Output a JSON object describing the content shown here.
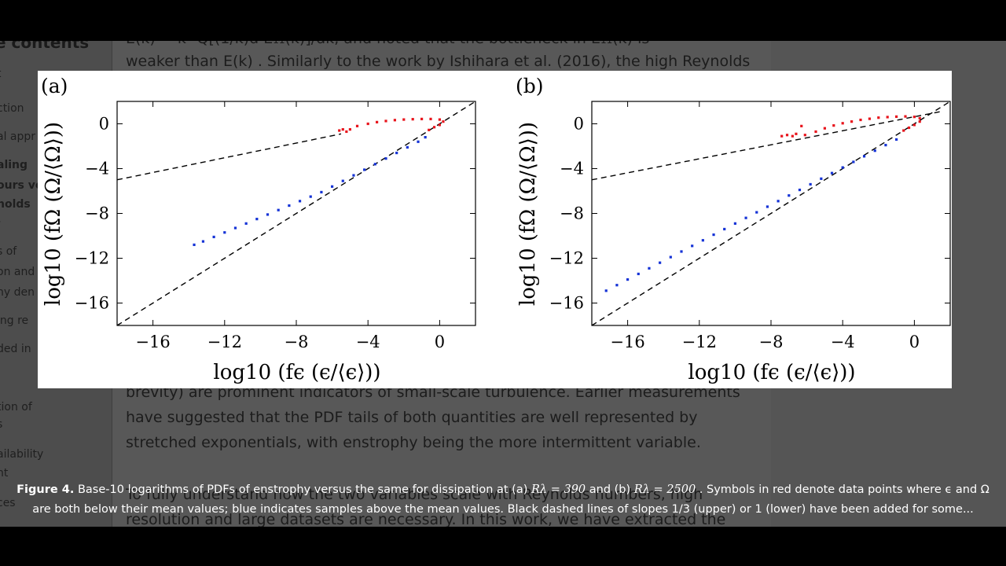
{
  "toc": {
    "title": "e contents",
    "items": [
      {
        "label": "t",
        "bold": false
      },
      {
        "label": "ction",
        "bold": false
      },
      {
        "label": "al appr",
        "bold": false
      },
      {
        "label": "aling",
        "bold": true
      },
      {
        "label": "ours ve",
        "bold": true
      },
      {
        "label": "nolds",
        "bold": true
      },
      {
        "label": "-",
        "bold": false
      },
      {
        "label": "s of",
        "bold": false
      },
      {
        "label": "on and",
        "bold": false
      },
      {
        "label": "hy den",
        "bold": false
      },
      {
        "label": "ing re",
        "bold": false
      },
      {
        "label": "ded in",
        "bold": false
      },
      {
        "label": "tion of",
        "bold": false
      },
      {
        "label": "s",
        "bold": false
      },
      {
        "label": "ailability",
        "bold": false
      },
      {
        "label": "nt",
        "bold": false
      },
      {
        "label": "ces",
        "bold": false
      }
    ]
  },
  "article": {
    "line_top_cut": "E(k) = k² Q[(1/k)d E₁₁(k)]/dk, and noted that the bottleneck in E₁₁(k) is",
    "line1": "weaker than E(k) . Similarly to the work by Ishihara et al. (2016), the high Reynolds",
    "line2": "brevity) are prominent indicators of small-scale turbulence. Earlier measurements",
    "line3": "have suggested that the PDF tails of both quantities are well represented by",
    "line4": "stretched exponentials, with enstrophy being the more intermittent variable.",
    "line5": "To fully understand how the two variables scale with Reynolds numbers, high",
    "line6": "resolution and large datasets are necessary. In this work, we have extracted the"
  },
  "caption": {
    "label": "Figure 4.",
    "line1_a": "Base-10 logarithms of PDFs of enstrophy versus the same for dissipation at (a)",
    "ra": "Rλ = 390",
    "and": "and (b)",
    "rb": "Rλ = 2500",
    "line1_b": ". Symbols in red denote data points where ϵ and Ω",
    "line2": "are both below their mean values; blue indicates samples above the mean values. Black dashed lines of slopes 1/3 (upper) or 1 (lower) have been added for some..."
  },
  "colors": {
    "below_mean": "#e8141c",
    "above_mean": "#1533d6",
    "reference": "#000000"
  },
  "chart_data": [
    {
      "type": "scatter",
      "panel": "(a)",
      "xlabel": "log10 (fϵ (ϵ/⟨ϵ⟩))",
      "ylabel": "log10 (fΩ (Ω/⟨Ω⟩))",
      "xlim": [
        -18,
        2
      ],
      "ylim": [
        -18,
        2
      ],
      "xticks": [
        -16,
        -12,
        -8,
        -4,
        0
      ],
      "yticks": [
        0,
        -4,
        -8,
        -12,
        -16
      ],
      "series": [
        {
          "color": "#e8141c",
          "kind": "below-mean",
          "points": [
            [
              -5.6,
              -0.6
            ],
            [
              -5.4,
              -0.5
            ],
            [
              -5.2,
              -0.7
            ],
            [
              -5.0,
              -0.5
            ],
            [
              -4.6,
              -0.2
            ],
            [
              -4.0,
              0.0
            ],
            [
              -3.5,
              0.15
            ],
            [
              -3.0,
              0.25
            ],
            [
              -2.5,
              0.33
            ],
            [
              -2.0,
              0.38
            ],
            [
              -1.5,
              0.41
            ],
            [
              -1.0,
              0.43
            ],
            [
              -0.5,
              0.43
            ],
            [
              0.0,
              0.38
            ],
            [
              0.2,
              0.2
            ],
            [
              0.0,
              -0.1
            ],
            [
              -0.3,
              -0.3
            ],
            [
              -0.6,
              -0.55
            ]
          ]
        },
        {
          "color": "#1533d6",
          "kind": "above-mean",
          "points": [
            [
              -13.7,
              -10.8
            ],
            [
              -13.2,
              -10.5
            ],
            [
              -12.6,
              -10.1
            ],
            [
              -12.0,
              -9.7
            ],
            [
              -11.4,
              -9.3
            ],
            [
              -10.8,
              -8.9
            ],
            [
              -10.2,
              -8.5
            ],
            [
              -9.6,
              -8.1
            ],
            [
              -9.0,
              -7.7
            ],
            [
              -8.4,
              -7.3
            ],
            [
              -7.8,
              -6.9
            ],
            [
              -7.2,
              -6.5
            ],
            [
              -6.6,
              -6.1
            ],
            [
              -6.0,
              -5.6
            ],
            [
              -5.4,
              -5.1
            ],
            [
              -4.8,
              -4.6
            ],
            [
              -4.2,
              -4.1
            ],
            [
              -3.6,
              -3.6
            ],
            [
              -3.0,
              -3.1
            ],
            [
              -2.4,
              -2.6
            ],
            [
              -1.8,
              -2.1
            ],
            [
              -1.2,
              -1.6
            ],
            [
              -0.8,
              -1.2
            ]
          ]
        }
      ],
      "reference_lines": [
        {
          "label": "slope 1/3",
          "x": [
            -18,
            -5.5
          ],
          "y": [
            -5.0,
            -0.9
          ]
        },
        {
          "label": "slope 1",
          "x": [
            -18,
            2
          ],
          "y": [
            -18,
            2
          ]
        }
      ]
    },
    {
      "type": "scatter",
      "panel": "(b)",
      "xlabel": "log10 (fϵ (ϵ/⟨ϵ⟩))",
      "ylabel": "log10 (fΩ (Ω/⟨Ω⟩))",
      "xlim": [
        -18,
        2
      ],
      "ylim": [
        -18,
        2
      ],
      "xticks": [
        -16,
        -12,
        -8,
        -4,
        0
      ],
      "yticks": [
        0,
        -4,
        -8,
        -12,
        -16
      ],
      "series": [
        {
          "color": "#e8141c",
          "kind": "below-mean",
          "points": [
            [
              -7.4,
              -1.1
            ],
            [
              -7.1,
              -1.0
            ],
            [
              -6.8,
              -1.1
            ],
            [
              -6.6,
              -0.9
            ],
            [
              -6.3,
              -0.2
            ],
            [
              -6.1,
              -1.0
            ],
            [
              -5.5,
              -0.7
            ],
            [
              -5.0,
              -0.4
            ],
            [
              -4.5,
              -0.15
            ],
            [
              -4.0,
              0.05
            ],
            [
              -3.5,
              0.2
            ],
            [
              -3.0,
              0.35
            ],
            [
              -2.5,
              0.45
            ],
            [
              -2.0,
              0.55
            ],
            [
              -1.5,
              0.6
            ],
            [
              -1.0,
              0.64
            ],
            [
              -0.5,
              0.66
            ],
            [
              0.0,
              0.62
            ],
            [
              0.3,
              0.5
            ],
            [
              0.3,
              0.2
            ],
            [
              0.0,
              -0.1
            ],
            [
              -0.3,
              -0.35
            ],
            [
              -0.6,
              -0.6
            ]
          ]
        },
        {
          "color": "#1533d6",
          "kind": "above-mean",
          "points": [
            [
              -17.2,
              -14.9
            ],
            [
              -16.6,
              -14.4
            ],
            [
              -16.0,
              -13.9
            ],
            [
              -15.4,
              -13.4
            ],
            [
              -14.8,
              -12.9
            ],
            [
              -14.2,
              -12.4
            ],
            [
              -13.6,
              -11.9
            ],
            [
              -13.0,
              -11.4
            ],
            [
              -12.4,
              -10.9
            ],
            [
              -11.8,
              -10.4
            ],
            [
              -11.2,
              -9.9
            ],
            [
              -10.6,
              -9.4
            ],
            [
              -10.0,
              -8.9
            ],
            [
              -9.4,
              -8.4
            ],
            [
              -8.8,
              -7.9
            ],
            [
              -8.2,
              -7.4
            ],
            [
              -7.6,
              -6.9
            ],
            [
              -7.0,
              -6.4
            ],
            [
              -6.4,
              -5.9
            ],
            [
              -5.8,
              -5.4
            ],
            [
              -5.2,
              -4.9
            ],
            [
              -4.6,
              -4.4
            ],
            [
              -4.0,
              -3.9
            ],
            [
              -3.4,
              -3.4
            ],
            [
              -2.8,
              -2.9
            ],
            [
              -2.2,
              -2.4
            ],
            [
              -1.6,
              -1.9
            ],
            [
              -1.0,
              -1.4
            ]
          ]
        }
      ],
      "reference_lines": [
        {
          "label": "slope 1/3",
          "x": [
            -18,
            1.5
          ],
          "y": [
            -5.0,
            1.1
          ]
        },
        {
          "label": "slope 1",
          "x": [
            -18,
            2
          ],
          "y": [
            -18,
            2
          ]
        }
      ]
    }
  ]
}
